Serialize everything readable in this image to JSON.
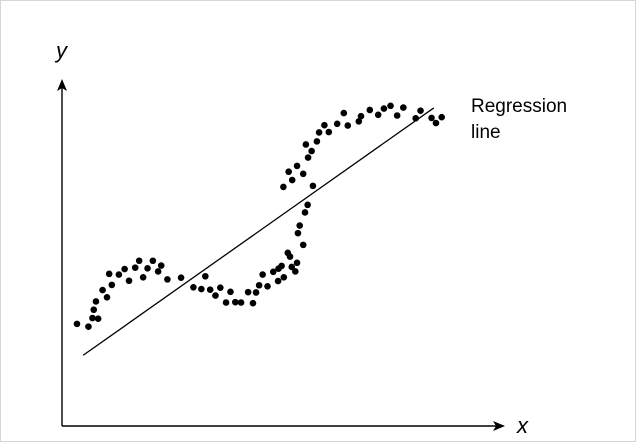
{
  "chart_data": {
    "type": "scatter",
    "title": "",
    "xlabel": "x",
    "ylabel": "y",
    "xlim": [
      0,
      100
    ],
    "ylim": [
      0,
      100
    ],
    "grid": false,
    "annotation": {
      "line1": "Regression",
      "line2": "line"
    },
    "regression_line": {
      "x": [
        4.8,
        84.3
      ],
      "y": [
        20.5,
        92.2
      ]
    },
    "points": [
      [
        3.4,
        29.6
      ],
      [
        6.0,
        28.8
      ],
      [
        6.9,
        31.3
      ],
      [
        7.2,
        33.7
      ],
      [
        7.7,
        36.1
      ],
      [
        8.2,
        31.1
      ],
      [
        9.2,
        39.4
      ],
      [
        10.2,
        37.3
      ],
      [
        10.7,
        44.1
      ],
      [
        11.3,
        40.9
      ],
      [
        12.9,
        43.9
      ],
      [
        14.2,
        45.5
      ],
      [
        15.2,
        42.1
      ],
      [
        16.6,
        45.9
      ],
      [
        17.5,
        47.9
      ],
      [
        18.4,
        43.1
      ],
      [
        19.4,
        45.7
      ],
      [
        20.6,
        47.9
      ],
      [
        21.8,
        44.8
      ],
      [
        22.5,
        46.5
      ],
      [
        23.9,
        42.5
      ],
      [
        27.0,
        43.0
      ],
      [
        29.8,
        40.2
      ],
      [
        31.6,
        39.7
      ],
      [
        32.5,
        43.4
      ],
      [
        33.6,
        39.5
      ],
      [
        34.8,
        37.8
      ],
      [
        35.9,
        40.1
      ],
      [
        37.2,
        35.8
      ],
      [
        38.2,
        38.9
      ],
      [
        39.3,
        35.9
      ],
      [
        40.6,
        35.8
      ],
      [
        42.2,
        38.8
      ],
      [
        43.3,
        35.6
      ],
      [
        44.0,
        38.7
      ],
      [
        44.7,
        40.8
      ],
      [
        45.5,
        43.9
      ],
      [
        46.6,
        40.5
      ],
      [
        47.9,
        44.7
      ],
      [
        49.0,
        42.0
      ],
      [
        49.1,
        45.6
      ],
      [
        49.8,
        46.4
      ],
      [
        50.3,
        43.1
      ],
      [
        51.2,
        50.2
      ],
      [
        51.7,
        49.1
      ],
      [
        52.1,
        46.1
      ],
      [
        52.9,
        44.8
      ],
      [
        53.3,
        47.3
      ],
      [
        53.5,
        55.9
      ],
      [
        54.7,
        52.5
      ],
      [
        53.9,
        58.1
      ],
      [
        55.1,
        61.9
      ],
      [
        55.7,
        64.1
      ],
      [
        56.9,
        69.6
      ],
      [
        50.2,
        69.3
      ],
      [
        51.4,
        73.7
      ],
      [
        52.2,
        71.3
      ],
      [
        53.3,
        75.4
      ],
      [
        54.7,
        73.1
      ],
      [
        55.8,
        77.8
      ],
      [
        56.6,
        79.7
      ],
      [
        55.3,
        81.6
      ],
      [
        57.8,
        82.5
      ],
      [
        58.3,
        85.1
      ],
      [
        59.5,
        87.2
      ],
      [
        60.5,
        85.2
      ],
      [
        62.4,
        87.6
      ],
      [
        63.9,
        90.7
      ],
      [
        64.8,
        87.1
      ],
      [
        67.3,
        88.3
      ],
      [
        67.8,
        89.8
      ],
      [
        69.8,
        91.6
      ],
      [
        71.7,
        90.2
      ],
      [
        73.0,
        92.0
      ],
      [
        74.5,
        92.8
      ],
      [
        76.0,
        90.0
      ],
      [
        77.4,
        92.3
      ],
      [
        80.2,
        89.2
      ],
      [
        81.3,
        91.4
      ],
      [
        83.8,
        89.3
      ],
      [
        84.8,
        87.8
      ],
      [
        86.1,
        89.5
      ]
    ]
  }
}
